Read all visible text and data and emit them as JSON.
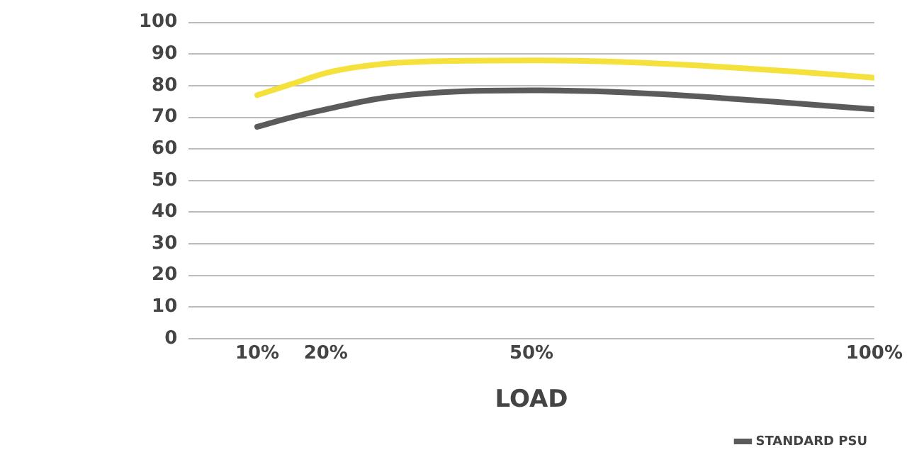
{
  "chart_data": {
    "type": "line",
    "xlabel": "LOAD",
    "x": [
      10,
      15,
      20,
      28,
      38,
      50,
      62,
      75,
      88,
      100
    ],
    "series": [
      {
        "color": "#f5e13c",
        "values": [
          77,
          80.5,
          84,
          86.8,
          87.8,
          88,
          87.6,
          86.3,
          84.5,
          82.5
        ]
      },
      {
        "name": "STANDARD PSU",
        "color": "#5b5b5b",
        "values": [
          67,
          70,
          72.5,
          76,
          78,
          78.5,
          78,
          76.5,
          74.5,
          72.5
        ]
      }
    ],
    "xlim": [
      0,
      100
    ],
    "xticks": [
      {
        "value": 10,
        "label": "10%"
      },
      {
        "value": 20,
        "label": "20%"
      },
      {
        "value": 50,
        "label": "50%"
      },
      {
        "value": 100,
        "label": "100%"
      }
    ],
    "ylim": [
      0,
      100
    ],
    "yticks": [
      0,
      10,
      20,
      30,
      40,
      50,
      60,
      70,
      80,
      90,
      100
    ],
    "grid": "y",
    "legend": "bottom right",
    "marker": "none",
    "line_style": "solid"
  }
}
